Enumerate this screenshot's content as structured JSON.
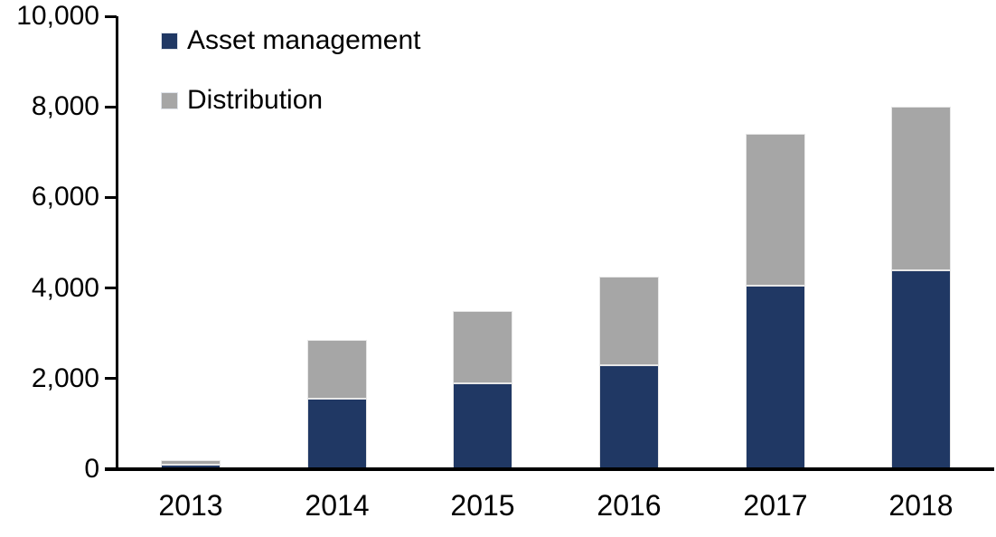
{
  "chart_data": {
    "type": "bar",
    "stacked": true,
    "categories": [
      "2013",
      "2014",
      "2015",
      "2016",
      "2017",
      "2018"
    ],
    "series": [
      {
        "name": "Asset management",
        "color": "#203864",
        "values": [
          100,
          1550,
          1900,
          2300,
          4050,
          4400
        ]
      },
      {
        "name": "Distribution",
        "color": "#A6A6A6",
        "values": [
          100,
          1300,
          1600,
          1950,
          3350,
          3600
        ]
      }
    ],
    "y_ticks": [
      {
        "value": 0,
        "label": "0"
      },
      {
        "value": 2000,
        "label": "2,000"
      },
      {
        "value": 4000,
        "label": "4,000"
      },
      {
        "value": 6000,
        "label": "6,000"
      },
      {
        "value": 8000,
        "label": "8,000"
      },
      {
        "value": 10000,
        "label": "10,000"
      }
    ],
    "ylim": [
      0,
      10000
    ],
    "grid": false,
    "legend_position": "top-left",
    "axis_color": "#000000",
    "background_color": "#FFFFFF"
  }
}
